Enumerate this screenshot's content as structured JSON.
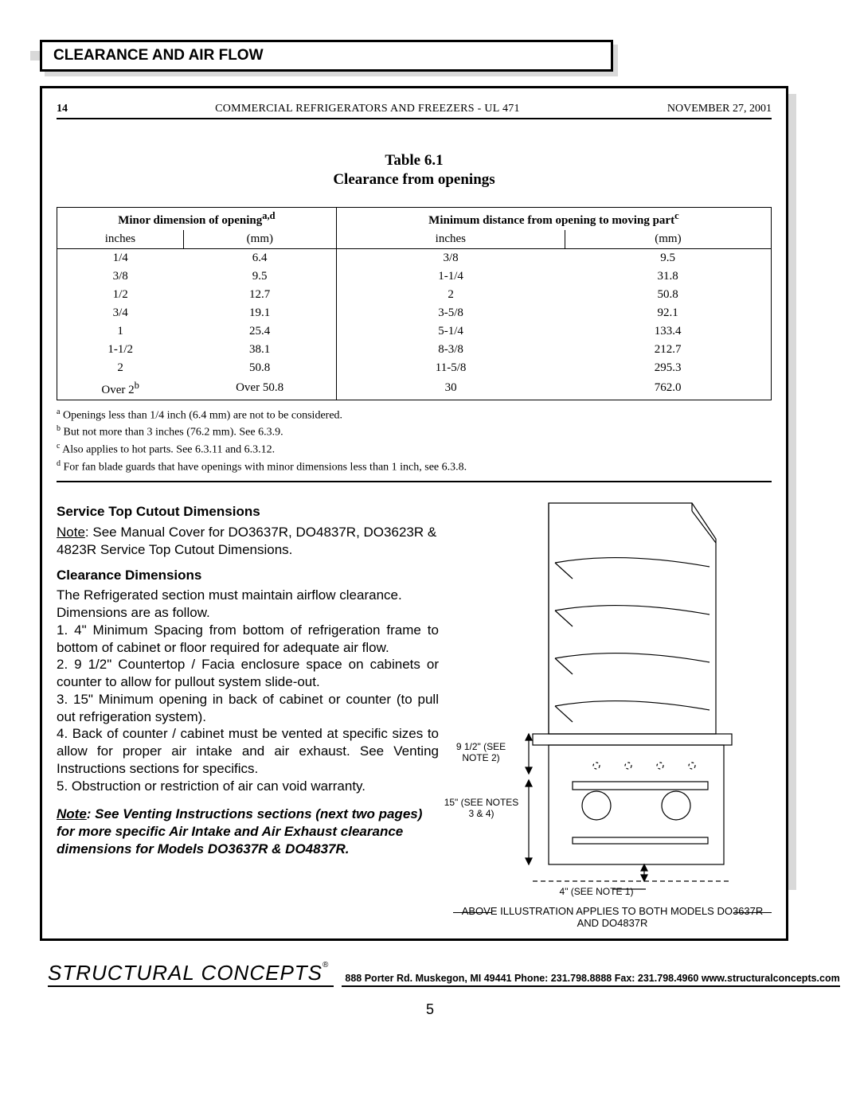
{
  "section_title": "CLEARANCE AND AIR FLOW",
  "header": {
    "page_top": "14",
    "doc_title": "COMMERCIAL REFRIGERATORS AND FREEZERS - UL 471",
    "date": "NOVEMBER 27, 2001"
  },
  "table": {
    "caption_line1": "Table 6.1",
    "caption_line2": "Clearance from openings",
    "group_headers": [
      "Minor dimension of opening",
      "Minimum distance from opening to moving part"
    ],
    "group_sup": [
      "a,d",
      "c"
    ],
    "sub_headers": [
      "inches",
      "(mm)",
      "inches",
      "(mm)"
    ],
    "rows": [
      [
        "1/4",
        "6.4",
        "3/8",
        "9.5"
      ],
      [
        "3/8",
        "9.5",
        "1-1/4",
        "31.8"
      ],
      [
        "1/2",
        "12.7",
        "2",
        "50.8"
      ],
      [
        "3/4",
        "19.1",
        "3-5/8",
        "92.1"
      ],
      [
        "1",
        "25.4",
        "5-1/4",
        "133.4"
      ],
      [
        "1-1/2",
        "38.1",
        "8-3/8",
        "212.7"
      ],
      [
        "2",
        "50.8",
        "11-5/8",
        "295.3"
      ],
      [
        "Over 2",
        "Over 50.8",
        "30",
        "762.0"
      ]
    ],
    "last_row_sup": "b",
    "footnotes": [
      {
        "mark": "a",
        "text": "Openings less than 1/4 inch (6.4 mm) are not to be considered."
      },
      {
        "mark": "b",
        "text": "But not more than 3 inches (76.2 mm). See 6.3.9."
      },
      {
        "mark": "c",
        "text": "Also applies to hot parts. See 6.3.11 and 6.3.12."
      },
      {
        "mark": "d",
        "text": "For fan blade guards that have openings with minor dimensions less than 1 inch, see 6.3.8."
      }
    ]
  },
  "body": {
    "h1": "Service Top Cutout Dimensions",
    "p1a": "Note",
    "p1b": ": See Manual Cover for DO3637R, DO4837R, DO3623R & 4823R Service Top Cutout Dimensions.",
    "h2": "Clearance Dimensions",
    "p2": "The Refrigerated section must maintain airflow clearance.  Dimensions are as follow.",
    "li1": "1. 4\" Minimum Spacing from bottom of refrigeration frame to bottom of cabinet or floor required for adequate air flow.",
    "li2": "2. 9 1/2\" Countertop / Facia enclosure space on cabinets or counter to allow for pullout system slide-out.",
    "li3": "3.  15\" Minimum opening in back of cabinet or counter (to pull out refrigeration system).",
    "li4": "4. Back of counter / cabinet must be vented at specific sizes to allow for proper air intake and air exhaust. See Venting Instructions sections for specifics.",
    "li5": "5. Obstruction or restriction of air can void warranty.",
    "emph_u": "Note",
    "emph_rest": ": See Venting Instructions sections (next two pages) for more specific Air Intake and Air Exhaust clearance dimensions for Models DO3637R & DO4837R."
  },
  "diagram": {
    "label1": "9 1/2\" (SEE NOTE 2)",
    "label2": "15\" (SEE NOTES 3 & 4)",
    "label3": "4\" (SEE NOTE 1)",
    "caption": "ABOVE ILLUSTRATION APPLIES TO BOTH MODELS DO3637R AND DO4837R"
  },
  "footer": {
    "brand": "STRUCTURAL CONCEPTS",
    "reg": "®",
    "contact": "888 Porter Rd.  Muskegon, MI  49441  Phone: 231.798.8888  Fax: 231.798.4960  www.structuralconcepts.com"
  },
  "page_number": "5",
  "colors": {
    "shadow": "#d9d9d9",
    "line": "#000000"
  }
}
